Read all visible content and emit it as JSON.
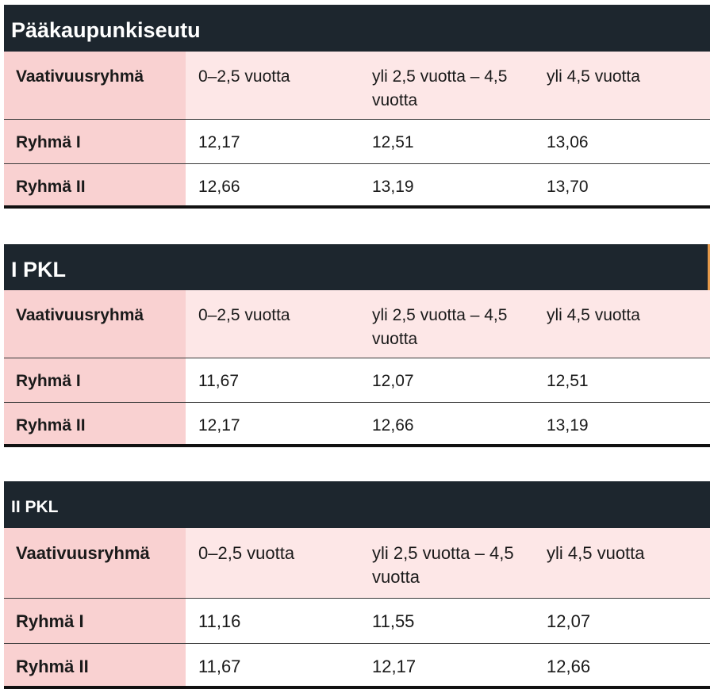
{
  "tables": [
    {
      "title": "Pääkaupunkiseutu",
      "headers": [
        "Vaativuusryhmä",
        "0–2,5 vuotta",
        "yli 2,5 vuotta – 4,5 vuotta",
        "yli 4,5 vuotta"
      ],
      "rows": [
        [
          "Ryhmä I",
          "12,17",
          "12,51",
          "13,06"
        ],
        [
          "Ryhmä II",
          "12,66",
          "13,19",
          "13,70"
        ]
      ]
    },
    {
      "title": "I PKL",
      "headers": [
        "Vaativuusryhmä",
        "0–2,5 vuotta",
        "yli 2,5 vuotta – 4,5 vuotta",
        "yli 4,5 vuotta"
      ],
      "rows": [
        [
          "Ryhmä I",
          "11,67",
          "12,07",
          "12,51"
        ],
        [
          "Ryhmä II",
          "12,17",
          "12,66",
          "13,19"
        ]
      ]
    },
    {
      "title": "II PKL",
      "headers": [
        "Vaativuusryhmä",
        "0–2,5 vuotta",
        "yli 2,5 vuotta – 4,5 vuotta",
        "yli 4,5 vuotta"
      ],
      "rows": [
        [
          "Ryhmä I",
          "11,16",
          "11,55",
          "12,07"
        ],
        [
          "Ryhmä II",
          "11,67",
          "12,17",
          "12,66"
        ]
      ]
    }
  ],
  "colors": {
    "title_background": "#1d262e",
    "header_background": "#fde7e7",
    "first_column_background": "#f9d1d1",
    "accent_edge": "#e79a4a"
  }
}
